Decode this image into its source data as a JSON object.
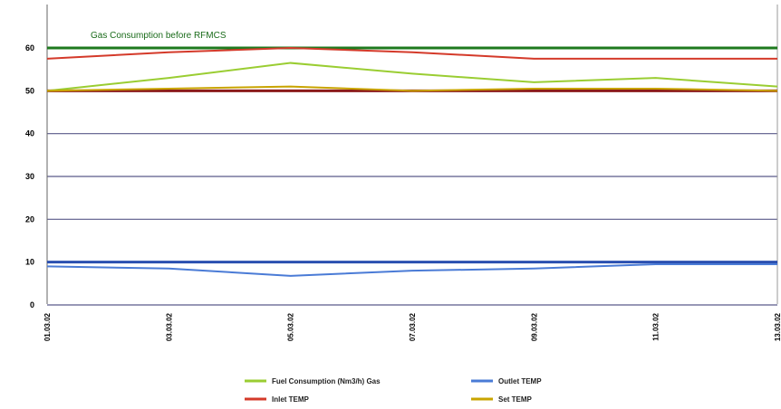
{
  "chart_data": {
    "type": "line",
    "title": "Gas Consumption before RFMCS",
    "xlabel": "",
    "ylabel": "",
    "ylim": [
      0,
      60
    ],
    "yticks": [
      "0",
      "10",
      "20",
      "30",
      "40",
      "50",
      "60"
    ],
    "categories": [
      "01.03.02",
      "03.03.02",
      "05.03.02",
      "07.03.02",
      "09.03.02",
      "11.03.02",
      "13.03.02"
    ],
    "grid": true,
    "legend_position": "bottom",
    "series": [
      {
        "name": "Fuel Consumption (Nm3/h) Gas",
        "color": "#9acd32",
        "values": [
          50,
          53,
          56.5,
          54,
          52,
          53,
          51
        ]
      },
      {
        "name": "Outlet TEMP",
        "color": "#4a7bd6",
        "values": [
          9,
          8.5,
          6.8,
          8,
          8.5,
          9.5,
          9.5
        ]
      },
      {
        "name": "Inlet TEMP",
        "color": "#d43a2a",
        "values": [
          57.5,
          59,
          60,
          59,
          57.5,
          57.5,
          57.5
        ]
      },
      {
        "name": "Set TEMP",
        "color": "#c9a400",
        "values": [
          50,
          50.5,
          51,
          50,
          50.5,
          50.5,
          50
        ]
      }
    ],
    "reference_lines": [
      {
        "value": 60,
        "color": "#1e7a1e"
      },
      {
        "value": 50,
        "color": "#8b1a1a"
      },
      {
        "value": 10,
        "color": "#2a4fb0"
      }
    ]
  }
}
